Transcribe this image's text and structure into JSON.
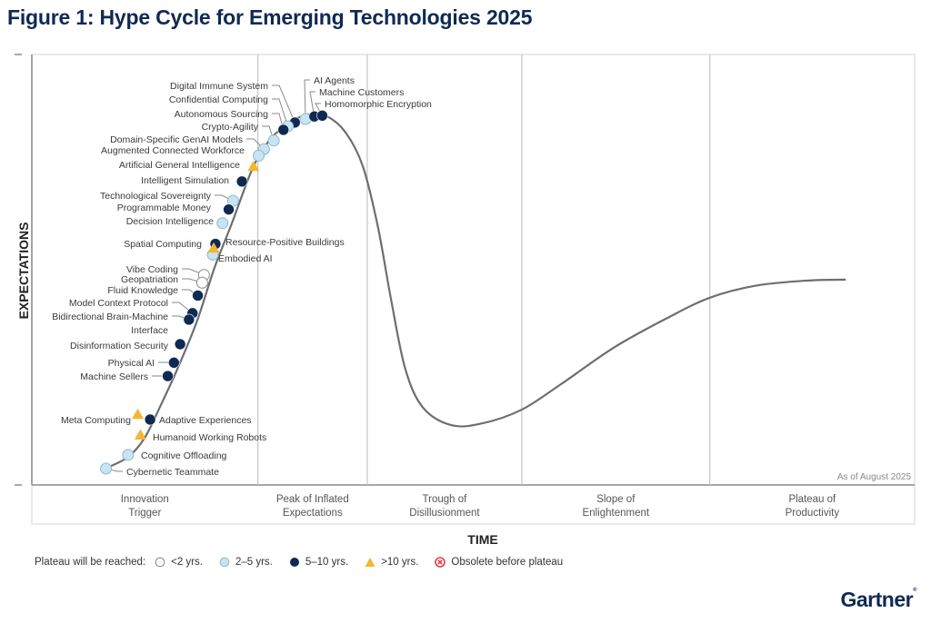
{
  "title": "Figure 1: Hype Cycle for Emerging Technologies 2025",
  "logo": "Gartner",
  "chart_data": {
    "type": "scatter",
    "title": "Figure 1: Hype Cycle for Emerging Technologies 2025",
    "xlabel": "TIME",
    "ylabel": "EXPECTATIONS",
    "xlim": [
      0,
      100
    ],
    "ylim": [
      0,
      100
    ],
    "grid": false,
    "annotation": "As of August 2025",
    "phases": [
      {
        "label_line1": "Innovation",
        "label_line2": "Trigger",
        "start": 0,
        "end": 25.6
      },
      {
        "label_line1": "Peak of Inflated",
        "label_line2": "Expectations",
        "start": 25.6,
        "end": 38.0
      },
      {
        "label_line1": "Trough of",
        "label_line2": "Disillusionment",
        "start": 38.0,
        "end": 55.5
      },
      {
        "label_line1": "Slope of",
        "label_line2": "Enlightenment",
        "start": 55.5,
        "end": 76.8
      },
      {
        "label_line1": "Plateau of",
        "label_line2": "Productivity",
        "start": 76.8,
        "end": 100
      }
    ],
    "curve": [
      [
        8.3,
        3.8
      ],
      [
        10.9,
        6.5
      ],
      [
        12.8,
        11.0
      ],
      [
        14.6,
        18.5
      ],
      [
        16.5,
        27.0
      ],
      [
        18.7,
        38.0
      ],
      [
        20.7,
        50.5
      ],
      [
        22.7,
        61.0
      ],
      [
        25.0,
        73.5
      ],
      [
        27.0,
        80.3
      ],
      [
        29.5,
        84.6
      ],
      [
        31.5,
        86.1
      ],
      [
        33.3,
        85.8
      ],
      [
        35.5,
        82.0
      ],
      [
        37.5,
        74.0
      ],
      [
        39.2,
        60.0
      ],
      [
        40.7,
        43.0
      ],
      [
        42.3,
        27.0
      ],
      [
        44.3,
        18.0
      ],
      [
        47.5,
        13.9
      ],
      [
        51.0,
        14.3
      ],
      [
        55.5,
        17.5
      ],
      [
        60.0,
        23.5
      ],
      [
        66.0,
        32.0
      ],
      [
        72.0,
        38.8
      ],
      [
        76.8,
        43.5
      ],
      [
        82.0,
        46.3
      ],
      [
        88.0,
        47.5
      ],
      [
        92.2,
        47.7
      ]
    ],
    "legend": {
      "title": "Plateau will be reached:",
      "items": [
        {
          "key": "lt2",
          "label": "<2 yrs.",
          "symbol": "circle-white"
        },
        {
          "key": "2to5",
          "label": "2–5 yrs.",
          "symbol": "circle-lightblue"
        },
        {
          "key": "5to10",
          "label": "5–10 yrs.",
          "symbol": "circle-navy"
        },
        {
          "key": "gt10",
          "label": ">10 yrs.",
          "symbol": "triangle-yellow"
        },
        {
          "key": "obsolete",
          "label": "Obsolete before plateau",
          "symbol": "circled-x-red"
        }
      ],
      "placement": "bottom-left"
    },
    "colors": {
      "lt2": "#ffffff",
      "2to5": "#c8e4f2",
      "5to10": "#0f2a52",
      "gt10": "#f2b632",
      "obsolete": "#e04040",
      "curve": "#6b6f70"
    },
    "points": [
      {
        "name": "AI Agents",
        "x": 31.0,
        "y": 85.0,
        "cat": "2to5",
        "label_side": "right",
        "leader": true
      },
      {
        "name": "Machine Customers",
        "x": 32.0,
        "y": 85.6,
        "cat": "5to10",
        "label_side": "right",
        "leader": true
      },
      {
        "name": "Homomorphic Encryption",
        "x": 32.9,
        "y": 85.8,
        "cat": "5to10",
        "label_side": "right",
        "leader": true
      },
      {
        "name": "Digital Immune System",
        "x": 29.8,
        "y": 84.2,
        "cat": "5to10",
        "label_side": "left",
        "leader": true
      },
      {
        "name": "Confidential Computing",
        "x": 29.0,
        "y": 83.3,
        "cat": "2to5",
        "label_side": "left",
        "leader": true
      },
      {
        "name": "Autonomous Sourcing",
        "x": 28.5,
        "y": 82.5,
        "cat": "5to10",
        "label_side": "left",
        "leader": true
      },
      {
        "name": "Crypto-Agility",
        "x": 27.4,
        "y": 80.0,
        "cat": "2to5",
        "label_side": "left",
        "leader": true
      },
      {
        "name": "Domain-Specific GenAI Models",
        "x": 26.3,
        "y": 78.0,
        "cat": "2to5",
        "label_side": "left",
        "leader": true
      },
      {
        "name": "Augmented Connected Workforce",
        "x": 25.7,
        "y": 76.5,
        "cat": "2to5",
        "label_side": "left",
        "leader": false
      },
      {
        "name": "Artificial General Intelligence",
        "x": 25.1,
        "y": 74.0,
        "cat": "gt10",
        "label_side": "left",
        "leader": false
      },
      {
        "name": "Intelligent Simulation",
        "x": 23.8,
        "y": 70.5,
        "cat": "5to10",
        "label_side": "left",
        "leader": false
      },
      {
        "name": "Technological Sovereignty",
        "x": 22.8,
        "y": 66.0,
        "cat": "2to5",
        "label_side": "left",
        "leader": true
      },
      {
        "name": "Programmable Money",
        "x": 22.3,
        "y": 64.0,
        "cat": "5to10",
        "label_side": "left",
        "leader": false
      },
      {
        "name": "Decision Intelligence",
        "x": 21.6,
        "y": 60.8,
        "cat": "2to5",
        "label_side": "left",
        "leader": false
      },
      {
        "name": "Spatial Computing",
        "x": 20.8,
        "y": 56.0,
        "cat": "5to10",
        "label_side": "left",
        "leader": false
      },
      {
        "name": "Resource-Positive Buildings",
        "x": 20.8,
        "y": 56.0,
        "cat": "5to10",
        "label_side": "right",
        "leader": false
      },
      {
        "name": "Embodied AI",
        "x": 20.5,
        "y": 53.5,
        "cat": "2to5",
        "label_side": "right",
        "leader": false
      },
      {
        "name": "Resource-Positive Buildings marker",
        "x": 20.6,
        "y": 55.0,
        "cat": "gt10",
        "label_side": "none",
        "leader": false
      },
      {
        "name": "Vibe Coding",
        "x": 19.5,
        "y": 48.8,
        "cat": "lt2",
        "label_side": "left",
        "leader": true
      },
      {
        "name": "Geopatriation",
        "x": 19.3,
        "y": 47.0,
        "cat": "lt2",
        "label_side": "left",
        "leader": true
      },
      {
        "name": "Fluid Knowledge",
        "x": 18.8,
        "y": 44.0,
        "cat": "5to10",
        "label_side": "left",
        "leader": true
      },
      {
        "name": "Model Context Protocol",
        "x": 18.2,
        "y": 39.9,
        "cat": "5to10",
        "label_side": "left",
        "leader": true
      },
      {
        "name": "Bidirectional Brain-Machine Interface",
        "x": 17.8,
        "y": 38.4,
        "cat": "5to10",
        "label_side": "left",
        "leader": true
      },
      {
        "name": "Disinformation Security",
        "x": 16.8,
        "y": 32.7,
        "cat": "5to10",
        "label_side": "left",
        "leader": false
      },
      {
        "name": "Physical AI",
        "x": 16.1,
        "y": 28.4,
        "cat": "5to10",
        "label_side": "left",
        "leader": true
      },
      {
        "name": "Machine Sellers",
        "x": 15.4,
        "y": 25.3,
        "cat": "5to10",
        "label_side": "left",
        "leader": true
      },
      {
        "name": "Meta Computing",
        "x": 12.0,
        "y": 16.4,
        "cat": "gt10",
        "label_side": "left",
        "leader": false
      },
      {
        "name": "Adaptive Experiences",
        "x": 13.4,
        "y": 15.2,
        "cat": "5to10",
        "label_side": "right",
        "leader": false
      },
      {
        "name": "Humanoid Working Robots",
        "x": 12.3,
        "y": 11.6,
        "cat": "gt10",
        "label_side": "right",
        "leader": false
      },
      {
        "name": "Cognitive Offloading",
        "x": 10.9,
        "y": 7.0,
        "cat": "2to5",
        "label_side": "right",
        "leader": false
      },
      {
        "name": "Cybernetic Teammate",
        "x": 8.4,
        "y": 3.8,
        "cat": "2to5",
        "label_side": "right",
        "leader": true
      }
    ]
  }
}
